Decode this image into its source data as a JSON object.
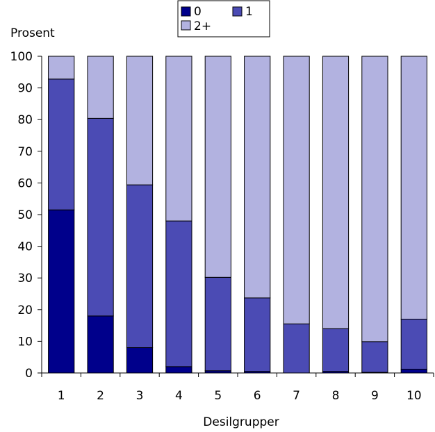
{
  "chart_data": {
    "type": "bar",
    "stacked": true,
    "title": "",
    "xlabel": "Desilgrupper",
    "ylabel": "Prosent",
    "ylim": [
      0,
      100
    ],
    "yticks": [
      "0",
      "10",
      "20",
      "30",
      "40",
      "50",
      "60",
      "70",
      "80",
      "90",
      "100"
    ],
    "categories": [
      "1",
      "2",
      "3",
      "4",
      "5",
      "6",
      "7",
      "8",
      "9",
      "10"
    ],
    "series": [
      {
        "name": "0",
        "color": "#00008b",
        "values": [
          51.5,
          18.0,
          8.0,
          2.0,
          0.7,
          0.5,
          0.0,
          0.5,
          0.2,
          1.2
        ]
      },
      {
        "name": "1",
        "color": "#4b4bb4",
        "values": [
          41.3,
          62.4,
          51.4,
          46.0,
          29.5,
          23.2,
          15.5,
          13.5,
          9.7,
          15.8
        ]
      },
      {
        "name": "2+",
        "color": "#b2b2e0",
        "values": [
          7.2,
          19.6,
          40.6,
          52.0,
          69.8,
          76.3,
          84.5,
          86.0,
          90.1,
          83.0
        ]
      }
    ],
    "legend_position": "top-center",
    "grid": false
  }
}
